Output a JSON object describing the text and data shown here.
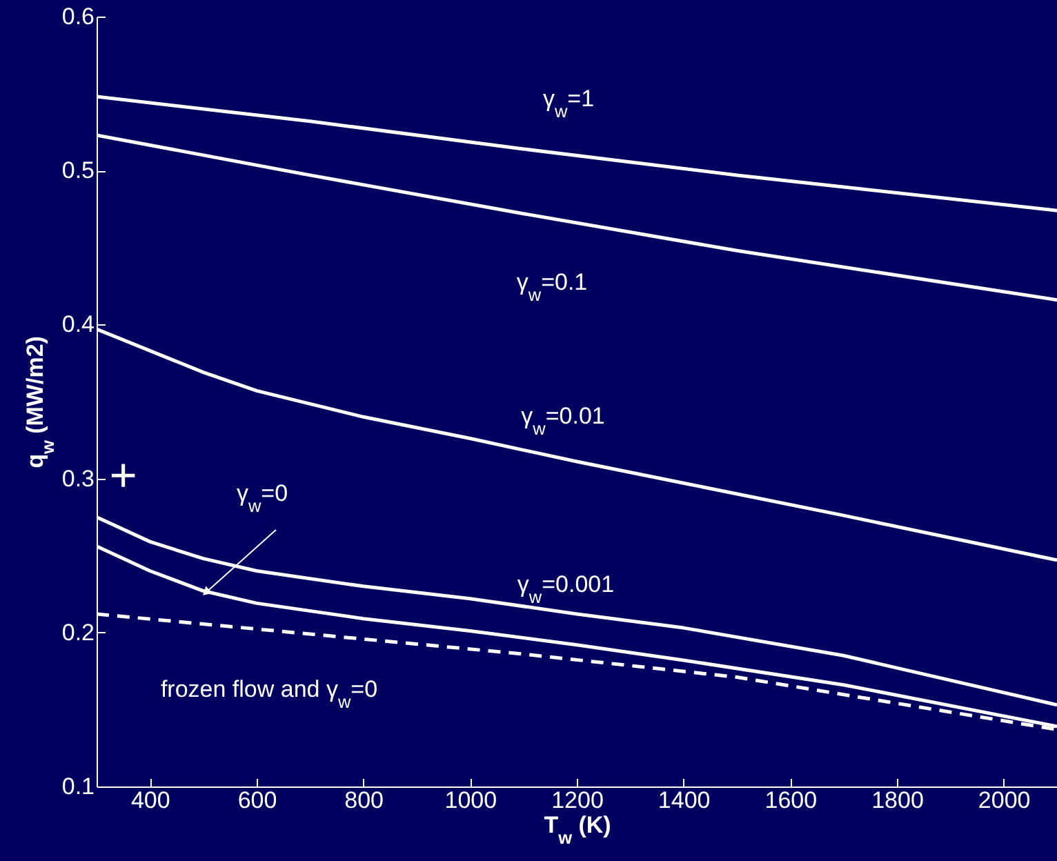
{
  "chart_data": {
    "type": "line",
    "xlabel": "T$_{w}$ (K)",
    "ylabel": "q$_{w}$ (MW/m2)",
    "xlim": [
      300,
      2100
    ],
    "ylim": [
      0.1,
      0.6
    ],
    "xticks": [
      400,
      600,
      800,
      1000,
      1200,
      1400,
      1600,
      1800,
      2000
    ],
    "yticks": [
      0.1,
      0.2,
      0.3,
      0.4,
      0.5,
      0.6
    ],
    "grid": false,
    "line_style": "solid",
    "marker": "none",
    "series": [
      {
        "color": "#ffffff",
        "x": [
          300,
          700,
          1100,
          1500,
          2100
        ],
        "values": [
          0.548,
          0.532,
          0.514,
          0.497,
          0.474
        ]
      },
      {
        "color": "#ffffff",
        "x": [
          300,
          700,
          1100,
          1500,
          2100
        ],
        "values": [
          0.523,
          0.497,
          0.472,
          0.448,
          0.416
        ]
      },
      {
        "color": "#ffffff",
        "x": [
          300,
          400,
          500,
          600,
          800,
          1000,
          1200,
          1400,
          1700,
          2100
        ],
        "values": [
          0.397,
          0.383,
          0.369,
          0.357,
          0.34,
          0.326,
          0.311,
          0.297,
          0.276,
          0.247
        ]
      },
      {
        "color": "#ffffff",
        "x": [
          300,
          400,
          500,
          600,
          800,
          1000,
          1200,
          1400,
          1700,
          2100
        ],
        "values": [
          0.275,
          0.259,
          0.248,
          0.24,
          0.23,
          0.222,
          0.212,
          0.203,
          0.185,
          0.153
        ]
      },
      {
        "color": "#ffffff",
        "x": [
          300,
          400,
          500,
          600,
          800,
          1000,
          1200,
          1400,
          1700,
          2100
        ],
        "values": [
          0.256,
          0.24,
          0.227,
          0.219,
          0.209,
          0.201,
          0.192,
          0.182,
          0.166,
          0.139
        ]
      },
      {
        "color": "#ffffff",
        "line_style": "dashed",
        "x": [
          300,
          700,
          1100,
          1500,
          2100
        ],
        "values": [
          0.212,
          0.199,
          0.186,
          0.171,
          0.137
        ]
      },
      {
        "type": "scatter",
        "marker": "cross",
        "color": "#ffffff",
        "x": [
          350
        ],
        "values": [
          0.302
        ]
      }
    ],
    "annotations": [
      "γ$_{w}$=1",
      "γ$_{w}$=0.1",
      "γ$_{w}$=0.01",
      "γ$_{w}$=0.001",
      {
        "text": "γ$_{w}$=0",
        "x": 505,
        "y": 0.226
      },
      "frozen flow and γ$_{w}$=0"
    ]
  }
}
